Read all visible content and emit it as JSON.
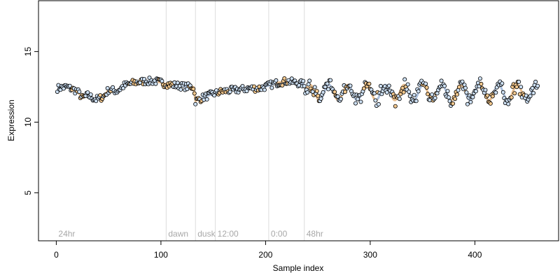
{
  "chart_data": {
    "type": "scatter",
    "xlabel": "Sample index",
    "ylabel": "Expression",
    "xlim": [
      -17,
      480
    ],
    "ylim": [
      1.6,
      18.6
    ],
    "x_ticks": [
      0,
      100,
      200,
      300,
      400
    ],
    "y_ticks": [
      5,
      10,
      15
    ],
    "grid": false,
    "legend": "none",
    "colors": {
      "point_outline": "#000000",
      "point_fill_light": "#cde0f4",
      "point_fill_orange": "#f5c98e",
      "trend_blue": "#9bb4d6",
      "trend_orange": "#e3b27a",
      "divider": "#dcdcdc",
      "region_label": "#a8a8a8"
    },
    "regions": [
      {
        "label": "24hr",
        "start": 0
      },
      {
        "label": "dawn",
        "start": 105
      },
      {
        "label": "dusk",
        "start": 133
      },
      {
        "label": "12:00",
        "start": 152
      },
      {
        "label": "0:00",
        "start": 203
      },
      {
        "label": "48hr",
        "start": 237
      }
    ],
    "dividers": [
      105,
      133,
      152,
      203,
      237
    ],
    "series_profile": {
      "n_samples": 460,
      "knots_x": [
        1,
        10,
        20,
        25,
        30,
        38,
        45,
        50,
        58,
        65,
        75,
        85,
        95,
        105,
        115,
        125,
        131,
        133,
        136,
        142,
        150,
        160,
        175,
        185,
        195,
        203,
        212,
        220,
        228,
        236,
        240,
        460
      ],
      "knots_y": [
        12.4,
        12.5,
        12.2,
        11.7,
        11.9,
        11.6,
        11.8,
        12.3,
        12.2,
        12.6,
        12.8,
        12.9,
        12.9,
        12.7,
        12.6,
        12.5,
        12.5,
        11.5,
        11.6,
        11.8,
        12.0,
        12.2,
        12.3,
        12.4,
        12.4,
        12.6,
        12.8,
        12.9,
        12.8,
        12.7,
        12.1,
        12.1
      ],
      "oscillation_start": 238,
      "oscillation_period": 18,
      "oscillation_amplitude": 0.55
    }
  }
}
